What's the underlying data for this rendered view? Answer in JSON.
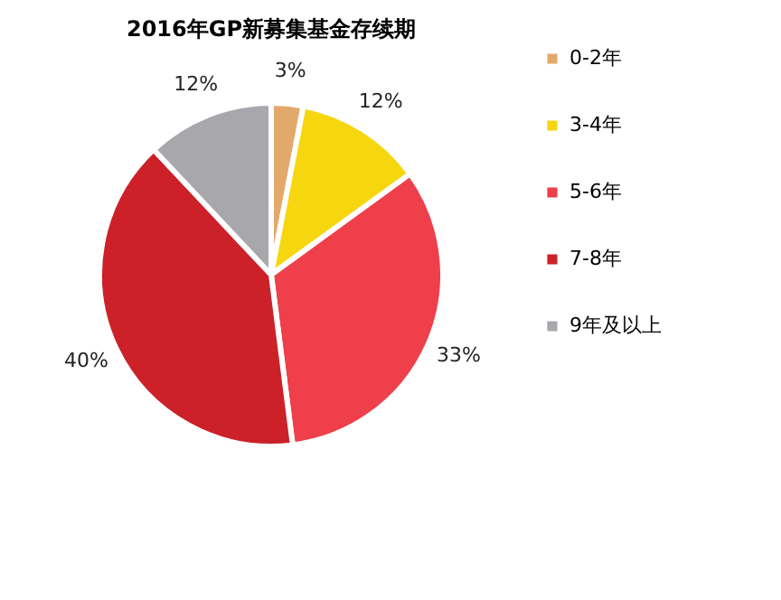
{
  "chart_data": {
    "type": "pie",
    "title": "2016年GP新募集基金存续期",
    "categories": [
      "0-2年",
      "3-4年",
      "5-6年",
      "7-8年",
      "9年及以上"
    ],
    "values": [
      3,
      12,
      33,
      40,
      12
    ],
    "value_labels": [
      "3%",
      "12%",
      "33%",
      "40%",
      "12%"
    ],
    "colors": [
      "#e3a96b",
      "#f6d60e",
      "#ee3f4b",
      "#cc2129",
      "#a7a7ac"
    ],
    "legend": "right"
  }
}
